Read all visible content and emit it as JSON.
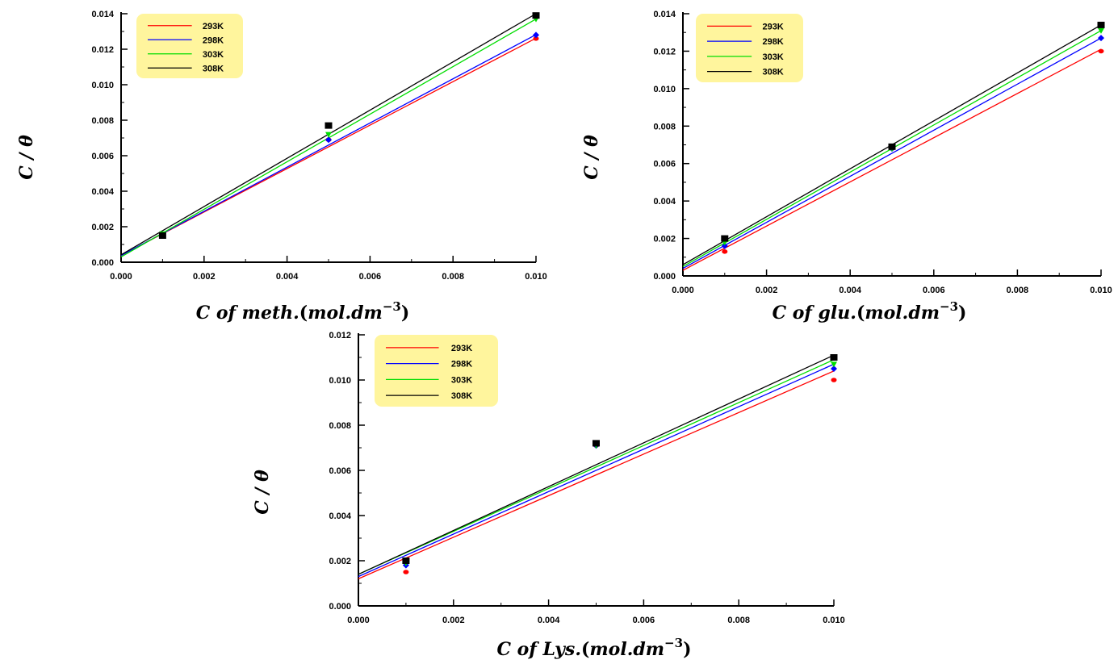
{
  "chart_data": [
    {
      "type": "scatter",
      "xlabel": "C of meth.(mol.dm^-3)",
      "xlabel_parts": {
        "lead": "C of meth.",
        "paren_open": "(",
        "unit": "mol.dm",
        "exponent": "−3",
        "paren_close": ")"
      },
      "ylabel": "C / θ",
      "xlim": [
        0,
        0.01
      ],
      "ylim": [
        0,
        0.014
      ],
      "xticks": [
        "0.000",
        "0.002",
        "0.004",
        "0.006",
        "0.008",
        "0.010"
      ],
      "yticks": [
        "0.000",
        "0.002",
        "0.004",
        "0.006",
        "0.008",
        "0.010",
        "0.012",
        "0.014"
      ],
      "legend_position": "top-left",
      "x": [
        0.001,
        0.005,
        0.01
      ],
      "series": [
        {
          "name": "293K",
          "color": "#ff0000",
          "values": [
            0.00155,
            0.0069,
            0.0126
          ],
          "fit": [
            0.00038,
            0.01262
          ]
        },
        {
          "name": "298K",
          "color": "#0000ff",
          "values": [
            0.00155,
            0.0069,
            0.0128
          ],
          "fit": [
            0.00038,
            0.01282
          ]
        },
        {
          "name": "303K",
          "color": "#00dd00",
          "values": [
            0.0016,
            0.0072,
            0.0137
          ],
          "fit": [
            0.0003,
            0.0137
          ]
        },
        {
          "name": "308K",
          "color": "#000000",
          "values": [
            0.0015,
            0.0077,
            0.0139
          ],
          "fit": [
            0.00042,
            0.014
          ]
        }
      ]
    },
    {
      "type": "scatter",
      "xlabel": "C of glu.(mol.dm^-3)",
      "xlabel_parts": {
        "lead": "C of glu.",
        "paren_open": "(",
        "unit": "mol.dm",
        "exponent": "−3",
        "paren_close": ")"
      },
      "ylabel": "C / θ",
      "xlim": [
        0,
        0.01
      ],
      "ylim": [
        0,
        0.014
      ],
      "xticks": [
        "0.000",
        "0.002",
        "0.004",
        "0.006",
        "0.008",
        "0.010"
      ],
      "yticks": [
        "0.000",
        "0.002",
        "0.004",
        "0.006",
        "0.008",
        "0.010",
        "0.012",
        "0.014"
      ],
      "legend_position": "top-left",
      "x": [
        0.001,
        0.005,
        0.01
      ],
      "series": [
        {
          "name": "293K",
          "color": "#ff0000",
          "values": [
            0.0013,
            0.0068,
            0.012
          ],
          "fit": [
            0.0003,
            0.0121
          ]
        },
        {
          "name": "298K",
          "color": "#0000ff",
          "values": [
            0.0016,
            0.0068,
            0.0127
          ],
          "fit": [
            0.0004,
            0.0127
          ]
        },
        {
          "name": "303K",
          "color": "#00dd00",
          "values": [
            0.0018,
            0.0068,
            0.0131
          ],
          "fit": [
            0.0005,
            0.0131
          ]
        },
        {
          "name": "308K",
          "color": "#000000",
          "values": [
            0.002,
            0.0069,
            0.0134
          ],
          "fit": [
            0.0006,
            0.0134
          ]
        }
      ]
    },
    {
      "type": "scatter",
      "xlabel": "C of Lys.(mol.dm^-3)",
      "xlabel_parts": {
        "lead": "C of Lys.",
        "paren_open": "(",
        "unit": "mol.dm",
        "exponent": "−3",
        "paren_close": ")"
      },
      "ylabel": "C / θ",
      "xlim": [
        0,
        0.01
      ],
      "ylim": [
        0,
        0.012
      ],
      "xticks": [
        "0.000",
        "0.002",
        "0.004",
        "0.006",
        "0.008",
        "0.010"
      ],
      "yticks": [
        "0.000",
        "0.002",
        "0.004",
        "0.006",
        "0.008",
        "0.010",
        "0.012"
      ],
      "legend_position": "top-left",
      "x": [
        0.001,
        0.005,
        0.01
      ],
      "series": [
        {
          "name": "293K",
          "color": "#ff0000",
          "values": [
            0.0015,
            0.0071,
            0.01
          ],
          "fit": [
            0.0012,
            0.0104
          ]
        },
        {
          "name": "298K",
          "color": "#0000ff",
          "values": [
            0.0018,
            0.0071,
            0.0105
          ],
          "fit": [
            0.0013,
            0.0107
          ]
        },
        {
          "name": "303K",
          "color": "#00dd00",
          "values": [
            0.0019,
            0.0071,
            0.0107
          ],
          "fit": [
            0.0014,
            0.0109
          ]
        },
        {
          "name": "308K",
          "color": "#000000",
          "values": [
            0.002,
            0.0072,
            0.011
          ],
          "fit": [
            0.0014,
            0.0111
          ]
        }
      ]
    }
  ],
  "colors": {
    "legend_background": "#fff59d",
    "axis": "#000000"
  }
}
